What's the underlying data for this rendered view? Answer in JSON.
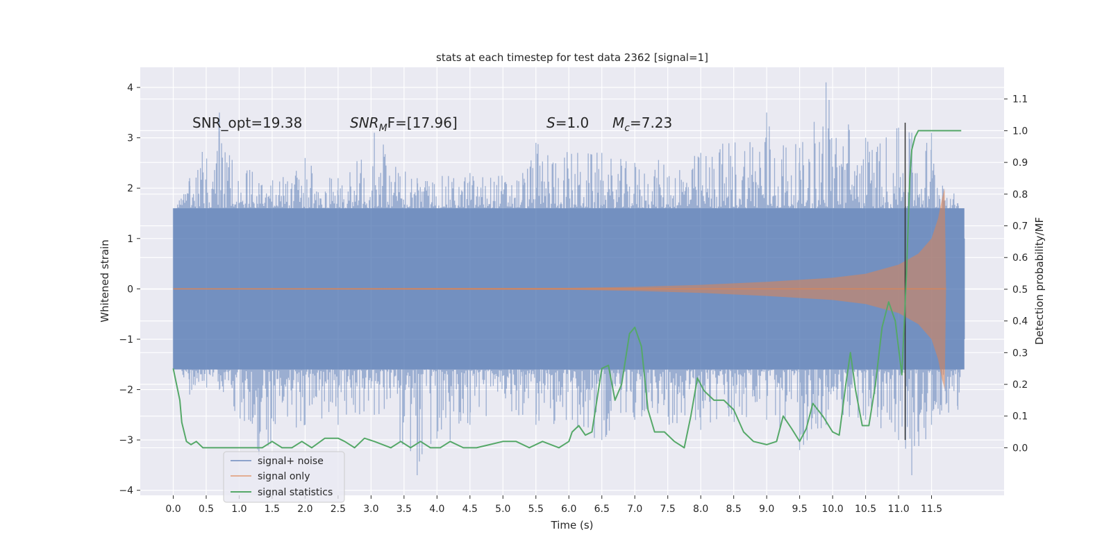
{
  "figure": {
    "title": "stats at each timestep for test data 2362 [signal=1]",
    "background": "#ffffff",
    "plot_background": "#eaeaf2",
    "grid_color": "#ffffff"
  },
  "annotations": {
    "snr_opt": "SNR_opt=19.38",
    "snr_mf_italic": "SNR",
    "snr_mf_sub": "M",
    "snr_mf_rest": "F=[17.96]",
    "s_italic": "S",
    "s_rest": "=1.0",
    "mc_italic": "M",
    "mc_sub": "c",
    "mc_rest": "=7.23"
  },
  "legend": {
    "placement": "lower-left",
    "entries": [
      {
        "label": "signal+ noise",
        "color": "#4c72b0"
      },
      {
        "label": "signal only",
        "color": "#dd8452"
      },
      {
        "label": "signal statistics",
        "color": "#55a868"
      }
    ]
  },
  "chart_data": {
    "type": "line",
    "title": "stats at each timestep for test data 2362 [signal=1]",
    "xlabel": "Time (s)",
    "ylabel": "Whitened strain",
    "y2label": "Detection probability/MF",
    "xlim": [
      -0.5,
      12.6
    ],
    "ylim": [
      -4.1,
      4.4
    ],
    "y2lim": [
      -0.15,
      1.2
    ],
    "grid": true,
    "x_ticks": [
      0.0,
      0.5,
      1.0,
      1.5,
      2.0,
      2.5,
      3.0,
      3.5,
      4.0,
      4.5,
      5.0,
      5.5,
      6.0,
      6.5,
      7.0,
      7.5,
      8.0,
      8.5,
      9.0,
      9.5,
      10.0,
      10.5,
      11.0,
      11.5
    ],
    "x_tick_labels": [
      "0.0",
      "0.5",
      "1.0",
      "1.5",
      "2.0",
      "2.5",
      "3.0",
      "3.5",
      "4.0",
      "4.5",
      "5.0",
      "5.5",
      "6.0",
      "6.5",
      "7.0",
      "7.5",
      "8.0",
      "8.5",
      "9.0",
      "9.5",
      "10.0",
      "10.5",
      "11.0",
      "11.5"
    ],
    "y_ticks": [
      -4,
      -3,
      -2,
      -1,
      0,
      1,
      2,
      3,
      4
    ],
    "y_tick_labels": [
      "−4",
      "−3",
      "−2",
      "−1",
      "0",
      "1",
      "2",
      "3",
      "4"
    ],
    "y2_ticks": [
      0.0,
      0.1,
      0.2,
      0.3,
      0.4,
      0.5,
      0.6,
      0.7,
      0.8,
      0.9,
      1.0,
      1.1
    ],
    "y2_tick_labels": [
      "0.0",
      "0.1",
      "0.2",
      "0.3",
      "0.4",
      "0.5",
      "0.6",
      "0.7",
      "0.8",
      "0.9",
      "1.0",
      "1.1"
    ],
    "noise_series": {
      "name": "signal+ noise",
      "color": "#4c72b0",
      "alpha": 0.5,
      "x_range": [
        0.0,
        12.0
      ],
      "typical_range": [
        -1.6,
        1.6
      ],
      "band_points": [
        [
          0.0,
          1.5,
          -1.2
        ],
        [
          0.25,
          2.2,
          -2.1
        ],
        [
          0.7,
          3.5,
          -2.0
        ],
        [
          1.3,
          2.1,
          -3.3
        ],
        [
          2.0,
          2.6,
          -2.7
        ],
        [
          2.5,
          2.2,
          -2.7
        ],
        [
          3.05,
          3.1,
          -2.5
        ],
        [
          3.7,
          2.2,
          -3.7
        ],
        [
          4.5,
          2.3,
          -2.7
        ],
        [
          5.3,
          2.3,
          -2.5
        ],
        [
          5.5,
          2.9,
          -2.7
        ],
        [
          6.5,
          2.7,
          -3.0
        ],
        [
          7.0,
          2.5,
          -2.6
        ],
        [
          8.0,
          2.7,
          -2.8
        ],
        [
          9.0,
          3.5,
          -2.6
        ],
        [
          9.5,
          2.8,
          -3.2
        ],
        [
          9.9,
          4.1,
          -2.7
        ],
        [
          10.5,
          3.0,
          -2.6
        ],
        [
          11.0,
          3.2,
          -3.0
        ],
        [
          11.2,
          3.1,
          -3.7
        ],
        [
          11.5,
          3.1,
          -2.7
        ],
        [
          11.9,
          1.7,
          -2.4
        ],
        [
          12.0,
          1.0,
          -1.0
        ]
      ]
    },
    "signal_series": {
      "name": "signal only",
      "color": "#dd8452",
      "x_range": [
        0.0,
        11.72
      ],
      "envelope": [
        [
          0.0,
          0.01
        ],
        [
          6.0,
          0.02
        ],
        [
          7.0,
          0.04
        ],
        [
          8.0,
          0.08
        ],
        [
          9.0,
          0.14
        ],
        [
          10.0,
          0.22
        ],
        [
          10.5,
          0.3
        ],
        [
          11.0,
          0.48
        ],
        [
          11.3,
          0.7
        ],
        [
          11.5,
          1.0
        ],
        [
          11.6,
          1.4
        ],
        [
          11.66,
          1.8
        ],
        [
          11.7,
          2.0
        ],
        [
          11.72,
          0.0
        ]
      ]
    },
    "statistics_series": {
      "name": "signal statistics",
      "color": "#55a868",
      "axis": "right",
      "points": [
        [
          0.0,
          0.25
        ],
        [
          0.1,
          0.15
        ],
        [
          0.13,
          0.08
        ],
        [
          0.2,
          0.02
        ],
        [
          0.27,
          0.01
        ],
        [
          0.35,
          0.02
        ],
        [
          0.45,
          0.0
        ],
        [
          0.6,
          0.0
        ],
        [
          0.8,
          0.0
        ],
        [
          1.0,
          0.0
        ],
        [
          1.2,
          0.0
        ],
        [
          1.35,
          0.0
        ],
        [
          1.5,
          0.02
        ],
        [
          1.65,
          0.0
        ],
        [
          1.8,
          0.0
        ],
        [
          1.95,
          0.02
        ],
        [
          2.1,
          0.0
        ],
        [
          2.3,
          0.03
        ],
        [
          2.5,
          0.03
        ],
        [
          2.6,
          0.02
        ],
        [
          2.75,
          0.0
        ],
        [
          2.9,
          0.03
        ],
        [
          3.05,
          0.02
        ],
        [
          3.3,
          0.0
        ],
        [
          3.45,
          0.02
        ],
        [
          3.6,
          0.0
        ],
        [
          3.75,
          0.02
        ],
        [
          3.9,
          0.0
        ],
        [
          4.05,
          0.0
        ],
        [
          4.2,
          0.02
        ],
        [
          4.4,
          0.0
        ],
        [
          4.6,
          0.0
        ],
        [
          4.8,
          0.01
        ],
        [
          5.0,
          0.02
        ],
        [
          5.2,
          0.02
        ],
        [
          5.4,
          0.0
        ],
        [
          5.6,
          0.02
        ],
        [
          5.85,
          0.0
        ],
        [
          6.0,
          0.02
        ],
        [
          6.05,
          0.05
        ],
        [
          6.15,
          0.07
        ],
        [
          6.25,
          0.04
        ],
        [
          6.35,
          0.05
        ],
        [
          6.5,
          0.25
        ],
        [
          6.6,
          0.26
        ],
        [
          6.7,
          0.15
        ],
        [
          6.8,
          0.2
        ],
        [
          6.92,
          0.36
        ],
        [
          7.0,
          0.38
        ],
        [
          7.1,
          0.32
        ],
        [
          7.2,
          0.12
        ],
        [
          7.3,
          0.05
        ],
        [
          7.45,
          0.05
        ],
        [
          7.6,
          0.02
        ],
        [
          7.75,
          0.0
        ],
        [
          7.85,
          0.1
        ],
        [
          7.95,
          0.22
        ],
        [
          8.05,
          0.18
        ],
        [
          8.2,
          0.15
        ],
        [
          8.35,
          0.15
        ],
        [
          8.5,
          0.12
        ],
        [
          8.65,
          0.05
        ],
        [
          8.8,
          0.02
        ],
        [
          9.0,
          0.01
        ],
        [
          9.15,
          0.02
        ],
        [
          9.25,
          0.1
        ],
        [
          9.38,
          0.06
        ],
        [
          9.5,
          0.02
        ],
        [
          9.6,
          0.06
        ],
        [
          9.7,
          0.14
        ],
        [
          9.85,
          0.1
        ],
        [
          10.0,
          0.05
        ],
        [
          10.1,
          0.04
        ],
        [
          10.2,
          0.2
        ],
        [
          10.27,
          0.3
        ],
        [
          10.35,
          0.18
        ],
        [
          10.45,
          0.07
        ],
        [
          10.55,
          0.07
        ],
        [
          10.65,
          0.2
        ],
        [
          10.75,
          0.38
        ],
        [
          10.85,
          0.46
        ],
        [
          10.95,
          0.4
        ],
        [
          11.05,
          0.23
        ],
        [
          11.12,
          0.55
        ],
        [
          11.17,
          0.85
        ],
        [
          11.2,
          0.94
        ],
        [
          11.25,
          0.98
        ],
        [
          11.3,
          1.0
        ],
        [
          11.6,
          1.0
        ],
        [
          11.95,
          1.0
        ]
      ]
    },
    "vertical_marker": {
      "x": 11.1,
      "color": "#333333",
      "y_from": -3.0,
      "y_to": 3.3
    }
  }
}
